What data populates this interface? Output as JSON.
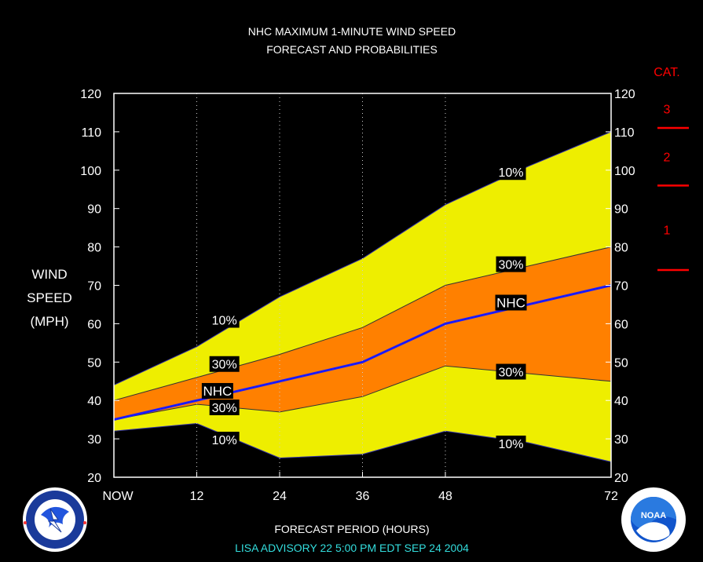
{
  "chart_data": {
    "type": "area",
    "title": [
      "NHC MAXIMUM 1-MINUTE WIND SPEED",
      "FORECAST AND PROBABILITIES"
    ],
    "xlabel": "FORECAST PERIOD (HOURS)",
    "ylabel": [
      "WIND",
      "SPEED",
      "(MPH)"
    ],
    "advisory": "LISA   ADVISORY  22  5:00  PM  EDT  SEP  24  2004",
    "xlim": [
      0,
      72
    ],
    "ylim": [
      20,
      120
    ],
    "x_ticks": [
      0,
      12,
      24,
      36,
      48,
      72
    ],
    "x_tick_labels": [
      "NOW",
      "12",
      "24",
      "36",
      "48",
      "72"
    ],
    "y_ticks": [
      20,
      30,
      40,
      50,
      60,
      70,
      80,
      90,
      100,
      110,
      120
    ],
    "grid": "vertical dotted at 12, 24, 36, 48",
    "series": [
      {
        "name": "10%",
        "role": "upper10",
        "x": [
          0,
          12,
          24,
          36,
          48,
          60,
          72
        ],
        "values": [
          44,
          54,
          67,
          77,
          91,
          101,
          110
        ]
      },
      {
        "name": "30%",
        "role": "upper30",
        "x": [
          0,
          12,
          24,
          36,
          48,
          60,
          72
        ],
        "values": [
          40,
          46,
          52,
          59,
          70,
          75,
          80
        ]
      },
      {
        "name": "NHC",
        "role": "nhc",
        "x": [
          0,
          12,
          24,
          36,
          48,
          60,
          72
        ],
        "values": [
          35,
          40,
          45,
          50,
          60,
          65,
          70
        ]
      },
      {
        "name": "30%",
        "role": "lower30",
        "x": [
          0,
          12,
          24,
          36,
          48,
          60,
          72
        ],
        "values": [
          35,
          39,
          37,
          41,
          49,
          47,
          45
        ]
      },
      {
        "name": "10%",
        "role": "lower10",
        "x": [
          0,
          12,
          24,
          36,
          48,
          60,
          72
        ],
        "values": [
          32,
          34,
          25,
          26,
          32,
          29,
          24
        ]
      }
    ],
    "series_labels": [
      {
        "text": "10%",
        "x": 16,
        "y": 61
      },
      {
        "text": "30%",
        "x": 16,
        "y": 49.5
      },
      {
        "text": "NHC",
        "x": 15,
        "y": 42.5
      },
      {
        "text": "30%",
        "x": 16,
        "y": 38.2
      },
      {
        "text": "10%",
        "x": 16,
        "y": 29.8
      },
      {
        "text": "10%",
        "x": 57.5,
        "y": 99.5
      },
      {
        "text": "30%",
        "x": 57.5,
        "y": 75.5
      },
      {
        "text": "NHC",
        "x": 57.5,
        "y": 65.5
      },
      {
        "text": "30%",
        "x": 57.5,
        "y": 47.5
      },
      {
        "text": "10%",
        "x": 57.5,
        "y": 28.8
      }
    ],
    "category_scale": {
      "heading": "CAT.",
      "thresholds_mph": [
        74,
        96,
        111
      ],
      "categories": [
        {
          "label": "1",
          "y": 84.5
        },
        {
          "label": "2",
          "y": 103.5
        },
        {
          "label": "3",
          "y": 116
        }
      ]
    }
  },
  "logos": {
    "nws": "NATIONAL WEATHER SERVICE",
    "noaa": "NOAA"
  },
  "colors": {
    "band_10": "#eeee00",
    "band_30": "#ff8000",
    "nhc_line": "#1a1aff",
    "category": "#ff0000",
    "advisory": "#33dddd"
  }
}
